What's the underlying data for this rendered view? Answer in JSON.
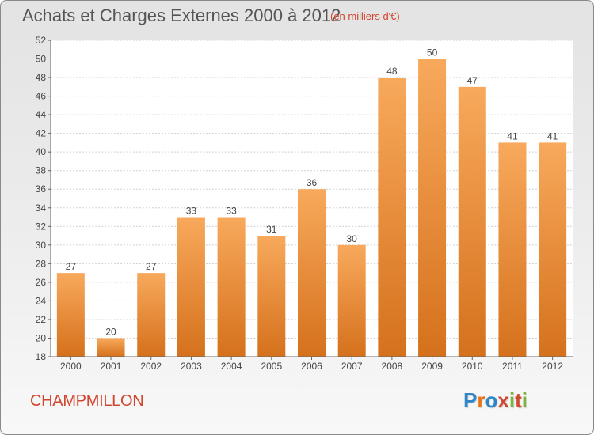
{
  "header": {
    "title": "Achats et Charges Externes 2000 à 2012",
    "subtitle": "(en milliers d'€)"
  },
  "footer": {
    "commune": "CHAMPMILLON",
    "logo_text": "Proxiti",
    "logo_colors": [
      "#2e86c8",
      "#e8741a",
      "#2e86c8",
      "#d2452e",
      "#7bb43a",
      "#d2452e",
      "#7bb43a"
    ]
  },
  "colors": {
    "bar_light": "#f8a95c",
    "bar_dark": "#d5711c",
    "accent": "#d2452e",
    "grid": "#d0d0d0",
    "axis": "#666666"
  },
  "chart_data": {
    "type": "bar",
    "title": "Achats et Charges Externes 2000 à 2012",
    "subtitle": "(en milliers d'€)",
    "categories": [
      "2000",
      "2001",
      "2002",
      "2003",
      "2004",
      "2005",
      "2006",
      "2007",
      "2008",
      "2009",
      "2010",
      "2011",
      "2012"
    ],
    "values": [
      27,
      20,
      27,
      33,
      33,
      31,
      36,
      30,
      48,
      50,
      47,
      41,
      41
    ],
    "ylim": [
      18,
      52
    ],
    "yticks": [
      18,
      20,
      22,
      24,
      26,
      28,
      30,
      32,
      34,
      36,
      38,
      40,
      42,
      44,
      46,
      48,
      50,
      52
    ],
    "grid": true,
    "data_labels": true
  }
}
